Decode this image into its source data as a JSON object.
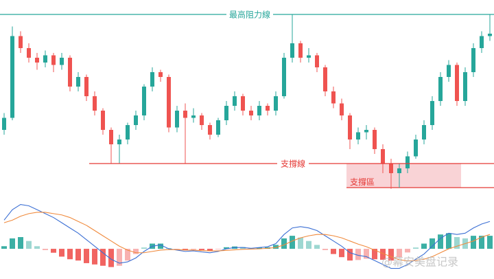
{
  "chart_data": [
    {
      "type": "candlestick",
      "up_color": "#26a69a",
      "down_color": "#ef5350",
      "ylim": [
        30,
        110
      ],
      "open": [
        56,
        61,
        95,
        90,
        86,
        84,
        87,
        83,
        86,
        74,
        78,
        70,
        64,
        56,
        50,
        52,
        58,
        62,
        74,
        80,
        78,
        57,
        64,
        61,
        62,
        58,
        54,
        60,
        66,
        70,
        64,
        62,
        66,
        64,
        70,
        86,
        92,
        86,
        87,
        82,
        72,
        67,
        62,
        52,
        55,
        56,
        48,
        42,
        38,
        40,
        45,
        52,
        58,
        68,
        78,
        83,
        68,
        80,
        90,
        95
      ],
      "high": [
        63,
        99,
        97,
        92,
        88,
        89,
        88,
        88,
        87,
        80,
        79,
        72,
        65,
        57,
        54,
        59,
        64,
        75,
        82,
        81,
        79,
        66,
        67,
        65,
        63,
        59,
        61,
        68,
        72,
        71,
        66,
        68,
        67,
        72,
        88,
        104,
        93,
        90,
        88,
        83,
        74,
        69,
        63,
        57,
        58,
        57,
        50,
        44,
        42,
        47,
        54,
        60,
        70,
        80,
        85,
        84,
        82,
        92,
        97,
        104
      ],
      "low": [
        54,
        60,
        88,
        84,
        81,
        82,
        80,
        81,
        72,
        72,
        68,
        62,
        54,
        42,
        42,
        50,
        56,
        60,
        72,
        76,
        55,
        55,
        42,
        59,
        56,
        52,
        53,
        58,
        64,
        62,
        60,
        60,
        62,
        62,
        69,
        84,
        84,
        84,
        80,
        70,
        65,
        60,
        48,
        50,
        52,
        46,
        38,
        31.5,
        32,
        38,
        44,
        50,
        56,
        66,
        76,
        66,
        66,
        78,
        88,
        93
      ],
      "close": [
        61,
        95,
        90,
        86,
        84,
        87,
        83,
        86,
        74,
        78,
        70,
        64,
        56,
        50,
        52,
        58,
        62,
        74,
        80,
        78,
        57,
        64,
        61,
        62,
        58,
        54,
        60,
        66,
        70,
        64,
        62,
        66,
        64,
        70,
        86,
        92,
        86,
        87,
        82,
        72,
        67,
        62,
        52,
        55,
        56,
        48,
        42,
        38,
        40,
        45,
        52,
        58,
        68,
        78,
        83,
        68,
        80,
        90,
        95,
        96
      ],
      "resistance": {
        "label": "最高阻力線",
        "value": 104,
        "color": "#26a69a"
      },
      "support": {
        "label": "支撐線",
        "value": 42,
        "color": "#e53935"
      },
      "support_zone": {
        "label": "支撐區",
        "range": [
          32,
          42
        ],
        "color": "#f8c8cc"
      }
    },
    {
      "type": "macd",
      "ylim": [
        -1.0,
        1.9
      ],
      "hist_up_color": "#26a69a",
      "hist_down_color": "#ef5350",
      "histogram": [
        0.1,
        0.4,
        0.45,
        0.3,
        0.1,
        -0.05,
        -0.15,
        -0.3,
        -0.4,
        -0.45,
        -0.55,
        -0.6,
        -0.65,
        -0.7,
        -0.65,
        -0.45,
        -0.2,
        0.05,
        0.2,
        0.2,
        0.03,
        -0.02,
        -0.05,
        -0.03,
        -0.05,
        -0.07,
        -0.02,
        0.06,
        0.09,
        0.07,
        0.03,
        0.05,
        0.06,
        0.15,
        0.4,
        0.5,
        0.43,
        0.3,
        0.15,
        -0.05,
        -0.2,
        -0.32,
        -0.45,
        -0.43,
        -0.38,
        -0.4,
        -0.42,
        -0.45,
        -0.33,
        -0.14,
        0.05,
        0.2,
        0.4,
        0.55,
        0.6,
        0.45,
        0.4,
        0.5,
        0.5,
        0.5
      ],
      "series": [
        {
          "color": "#3b6fd4",
          "values": [
            1.1,
            1.5,
            1.7,
            1.65,
            1.5,
            1.35,
            1.2,
            1.0,
            0.8,
            0.6,
            0.35,
            0.1,
            -0.15,
            -0.4,
            -0.55,
            -0.5,
            -0.35,
            -0.1,
            0.1,
            0.15,
            0.0,
            -0.05,
            -0.1,
            -0.08,
            -0.12,
            -0.15,
            -0.1,
            0.0,
            0.05,
            0.05,
            0.02,
            0.05,
            0.08,
            0.2,
            0.55,
            0.8,
            0.85,
            0.8,
            0.7,
            0.5,
            0.3,
            0.1,
            -0.15,
            -0.25,
            -0.3,
            -0.45,
            -0.6,
            -0.75,
            -0.75,
            -0.6,
            -0.4,
            -0.2,
            0.1,
            0.4,
            0.6,
            0.55,
            0.6,
            0.8,
            0.95,
            1.05
          ]
        },
        {
          "color": "#f08a3c",
          "values": [
            1.0,
            1.1,
            1.25,
            1.35,
            1.4,
            1.4,
            1.35,
            1.3,
            1.2,
            1.05,
            0.9,
            0.7,
            0.5,
            0.3,
            0.1,
            -0.05,
            -0.15,
            -0.15,
            -0.1,
            -0.05,
            -0.03,
            -0.03,
            -0.05,
            -0.05,
            -0.07,
            -0.08,
            -0.08,
            -0.06,
            -0.04,
            -0.02,
            -0.01,
            0.0,
            0.02,
            0.05,
            0.15,
            0.3,
            0.42,
            0.5,
            0.55,
            0.55,
            0.5,
            0.42,
            0.3,
            0.18,
            0.08,
            -0.05,
            -0.18,
            -0.3,
            -0.42,
            -0.46,
            -0.45,
            -0.4,
            -0.3,
            -0.15,
            0.0,
            0.1,
            0.2,
            0.3,
            0.45,
            0.55
          ]
        }
      ]
    }
  ],
  "watermark": "@幕安美盘记录"
}
